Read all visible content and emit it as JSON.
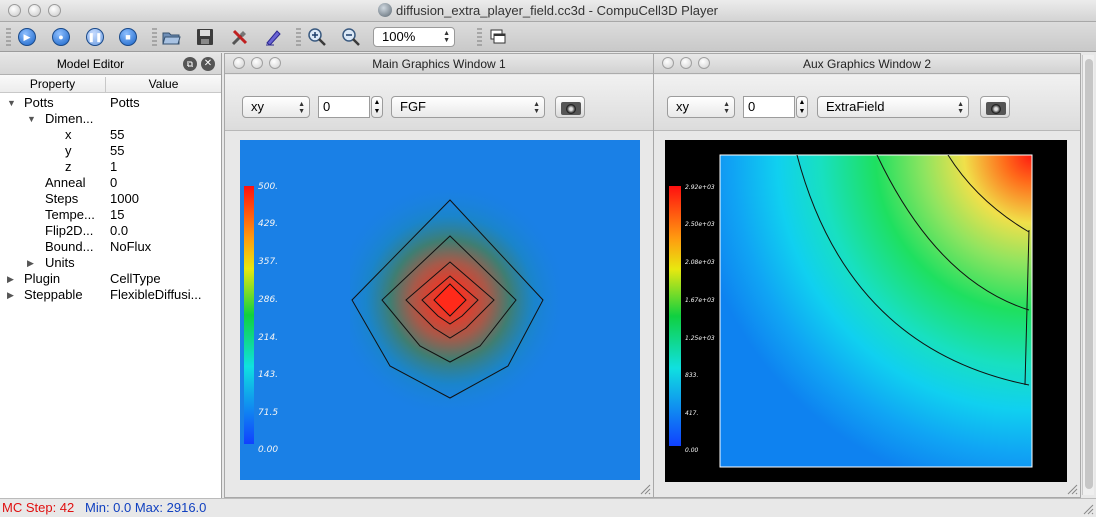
{
  "window": {
    "title": "diffusion_extra_player_field.cc3d - CompuCell3D Player"
  },
  "toolbar": {
    "buttons": [
      {
        "name": "run-icon",
        "glyph": "▶"
      },
      {
        "name": "step-icon",
        "glyph": "●"
      },
      {
        "name": "pause-icon",
        "glyph": "❚❚"
      },
      {
        "name": "stop-icon",
        "glyph": "■"
      },
      {
        "name": "open-folder-icon",
        "glyph": ""
      },
      {
        "name": "save-icon",
        "glyph": ""
      },
      {
        "name": "configure-icon",
        "glyph": ""
      },
      {
        "name": "edit-icon",
        "glyph": ""
      },
      {
        "name": "zoom-in-icon",
        "glyph": ""
      },
      {
        "name": "zoom-out-icon",
        "glyph": ""
      }
    ],
    "zoom_value": "100%"
  },
  "model_editor": {
    "title": "Model Editor",
    "col_property": "Property",
    "col_value": "Value",
    "rows": [
      {
        "label": "Potts",
        "value": "Potts"
      },
      {
        "label": "Dimen...",
        "value": ""
      },
      {
        "label": "x",
        "value": "55"
      },
      {
        "label": "y",
        "value": "55"
      },
      {
        "label": "z",
        "value": "1"
      },
      {
        "label": "Anneal",
        "value": "0"
      },
      {
        "label": "Steps",
        "value": "1000"
      },
      {
        "label": "Tempe...",
        "value": "15"
      },
      {
        "label": "Flip2D...",
        "value": "0.0"
      },
      {
        "label": "Bound...",
        "value": "NoFlux"
      },
      {
        "label": "Units",
        "value": ""
      },
      {
        "label": "Plugin",
        "value": "CellType"
      },
      {
        "label": "Steppable",
        "value": "FlexibleDiffusi..."
      }
    ]
  },
  "main_window": {
    "title": "Main Graphics Window 1",
    "projection": "xy",
    "slice": "0",
    "field": "FGF",
    "legend_ticks": [
      "500.",
      "429.",
      "357.",
      "286.",
      "214.",
      "143.",
      "71.5",
      "0.00"
    ]
  },
  "aux_window": {
    "title": "Aux Graphics Window 2",
    "projection": "xy",
    "slice": "0",
    "field": "ExtraField",
    "legend_ticks": [
      "2.92e+03",
      "2.50e+03",
      "2.08e+03",
      "1.67e+03",
      "1.25e+03",
      "833.",
      "417.",
      "0.00"
    ]
  },
  "status": {
    "mc_step": "MC Step: 42",
    "min_max": "Min: 0.0 Max: 2916.0"
  }
}
